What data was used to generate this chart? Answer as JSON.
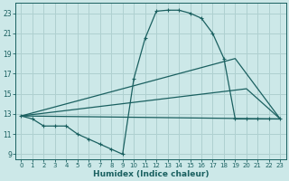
{
  "xlabel": "Humidex (Indice chaleur)",
  "xlim": [
    -0.5,
    23.5
  ],
  "ylim": [
    8.5,
    24.0
  ],
  "bg_color": "#cce8e8",
  "grid_color": "#afd0d0",
  "line_color": "#1a6060",
  "curve1_x": [
    0,
    1,
    2,
    3,
    4,
    5,
    6,
    7,
    8,
    9,
    10,
    11,
    12,
    13,
    14,
    15,
    16,
    17,
    18,
    19,
    20,
    21,
    22,
    23
  ],
  "curve1_y": [
    12.8,
    12.5,
    11.8,
    11.8,
    11.8,
    11.0,
    10.5,
    10.0,
    9.5,
    9.0,
    16.5,
    20.5,
    23.2,
    23.3,
    23.3,
    23.0,
    22.5,
    21.0,
    18.5,
    12.5,
    12.5,
    12.5,
    12.5,
    12.5
  ],
  "triline1_x": [
    0,
    23
  ],
  "triline1_y": [
    12.8,
    12.5
  ],
  "triline2_x": [
    0,
    19,
    23
  ],
  "triline2_y": [
    12.8,
    18.5,
    12.5
  ],
  "triline3_x": [
    0,
    20,
    23
  ],
  "triline3_y": [
    12.8,
    15.5,
    12.5
  ],
  "xticks": [
    0,
    1,
    2,
    3,
    4,
    5,
    6,
    7,
    8,
    9,
    10,
    11,
    12,
    13,
    14,
    15,
    16,
    17,
    18,
    19,
    20,
    21,
    22,
    23
  ],
  "yticks": [
    9,
    11,
    13,
    15,
    17,
    19,
    21,
    23
  ]
}
